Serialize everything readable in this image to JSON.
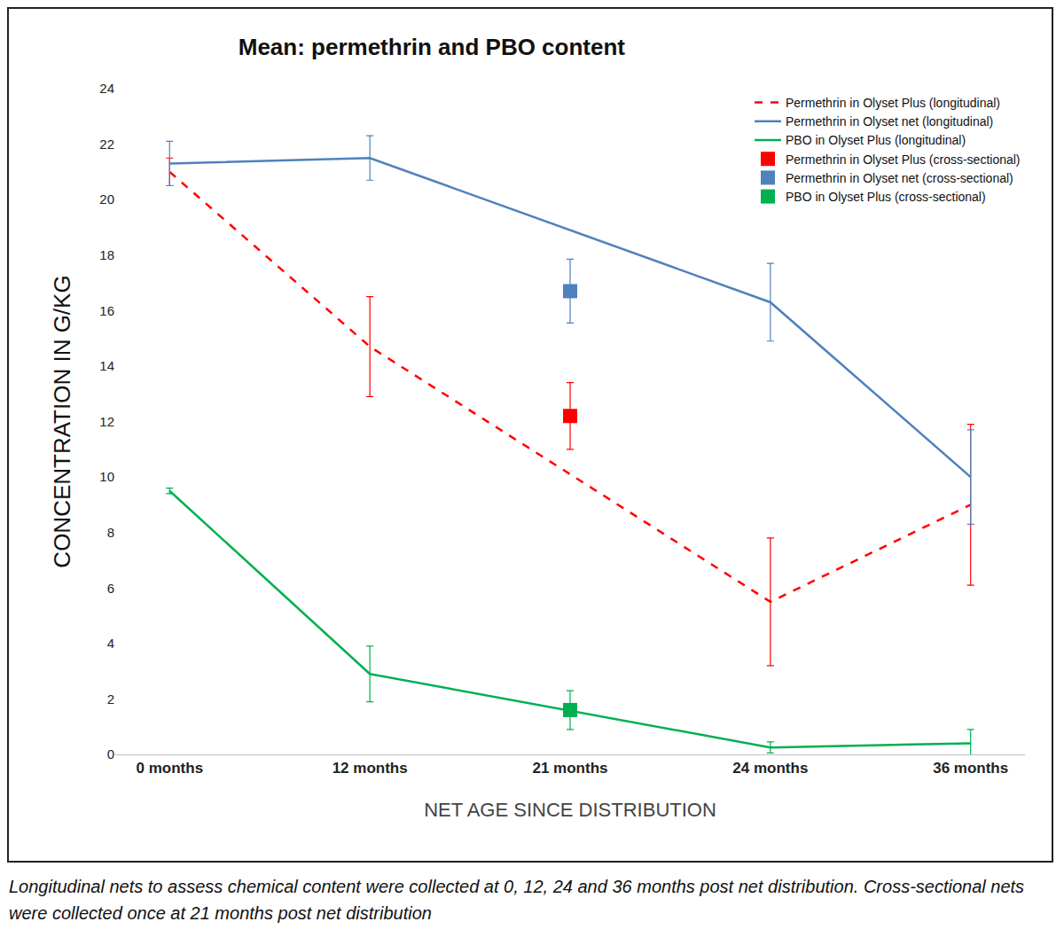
{
  "chart_data": {
    "type": "line",
    "title": "Mean: permethrin and PBO content",
    "x_label": "NET AGE SINCE DISTRIBUTION",
    "y_label": "CONCENTRATION IN G/KG",
    "caption": "Longitudinal nets to assess chemical content were collected at 0, 12, 24 and 36 months post net distribution. Cross-sectional nets were collected once at 21 months post net distribution",
    "categories": [
      "0 months",
      "12 months",
      "21 months",
      "24 months",
      "36 months"
    ],
    "ylim": [
      0,
      24
    ],
    "yticks": [
      0,
      2,
      4,
      6,
      8,
      10,
      12,
      14,
      16,
      18,
      20,
      22,
      24
    ],
    "grid": false,
    "legend": "top-right",
    "series": [
      {
        "name": "Permethrin in Olyset Plus (longitudinal)",
        "type": "line",
        "line_style": "dash",
        "color": "#ff0000",
        "values": [
          21.0,
          14.7,
          null,
          5.5,
          9.0
        ],
        "errors": [
          0.5,
          1.8,
          null,
          2.3,
          2.9
        ]
      },
      {
        "name": "Permethrin in Olyset net (longitudinal)",
        "type": "line",
        "line_style": "solid",
        "color": "#4f81bd",
        "values": [
          21.3,
          21.5,
          null,
          16.3,
          10.0
        ],
        "errors": [
          0.8,
          0.8,
          null,
          1.4,
          1.7
        ]
      },
      {
        "name": "PBO in Olyset Plus (longitudinal)",
        "type": "line",
        "line_style": "solid",
        "color": "#00b050",
        "values": [
          9.5,
          2.9,
          null,
          0.25,
          0.4
        ],
        "errors": [
          0.1,
          1.0,
          null,
          0.2,
          0.5
        ]
      },
      {
        "name": "Permethrin in Olyset Plus (cross-sectional)",
        "type": "scatter",
        "marker": "square",
        "color": "#ff0000",
        "values": [
          null,
          null,
          12.2,
          null,
          null
        ],
        "errors": [
          null,
          null,
          1.2,
          null,
          null
        ]
      },
      {
        "name": "Permethrin in Olyset net (cross-sectional)",
        "type": "scatter",
        "marker": "square",
        "color": "#4f81bd",
        "values": [
          null,
          null,
          16.7,
          null,
          null
        ],
        "errors": [
          null,
          null,
          1.15,
          null,
          null
        ]
      },
      {
        "name": "PBO in Olyset Plus (cross-sectional)",
        "type": "scatter",
        "marker": "square",
        "color": "#00b050",
        "values": [
          null,
          null,
          1.6,
          null,
          null
        ],
        "errors": [
          null,
          null,
          0.7,
          null,
          null
        ]
      }
    ]
  }
}
